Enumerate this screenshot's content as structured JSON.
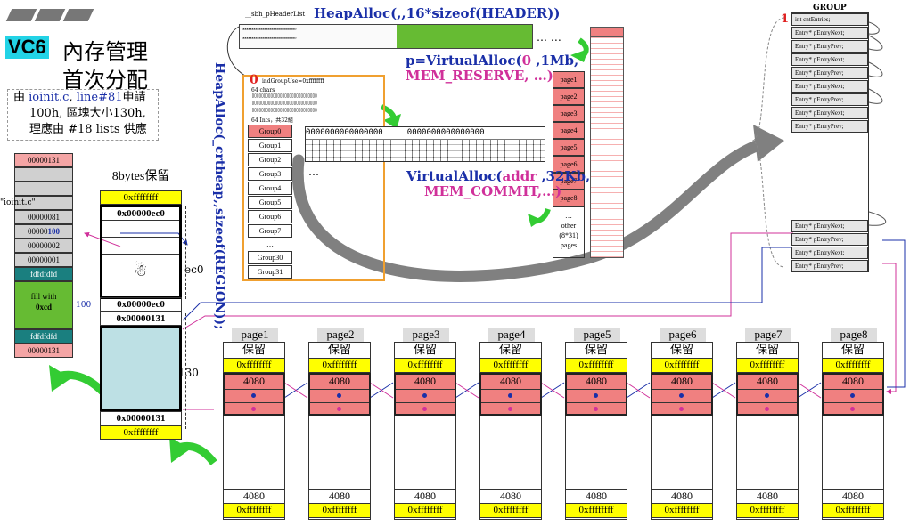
{
  "title": {
    "tag": "VC6",
    "line1": "內存管理",
    "line2": "首次分配"
  },
  "note": {
    "p1": "由 ",
    "file": "ioinit.c",
    "p2": ", ",
    "line": "line#81",
    "p3": "申請",
    "line2": "100h, 區塊大小130h,",
    "line3": "理應由 #18 lists 供應"
  },
  "left_block": {
    "rows": [
      "00000131",
      "",
      "",
      "00000081",
      "00000100",
      "00000002",
      "00000001",
      "fdfdfdfd"
    ],
    "highlight_value": "100",
    "ioinit_label": "\"ioinit.c\"",
    "fill_text": "fill with",
    "fill_code": "0xcd",
    "fill_size": "100",
    "bottom": [
      "fdfdfdfd",
      "00000131"
    ]
  },
  "mid_block": {
    "header": "8bytes保留",
    "top_fff": "0xffffffff",
    "top_ec0": "0x00000ec0",
    "ec0_label": "ec0",
    "mid_ec0": "0x00000ec0",
    "mid_131": "0x00000131",
    "size_label": "130",
    "bottom_131": "0x00000131",
    "bottom_fff": "0xffffffff"
  },
  "heap_header": {
    "list_label": "__sbh_pHeaderList",
    "heapalloc": "HeapAlloc(,,16*sizeof(HEADER))",
    "dots": "… …",
    "vaddr_p": "p=VirtualAlloc(",
    "vaddr_zero": "0",
    "vaddr_rest": " ,1Mb,",
    "vaddr_reserve": "MEM_RESERVE, …)"
  },
  "region": {
    "heapalloc_vertical": "HeapAlloc(_crtheap,,sizeof(REGION));",
    "zero": "0",
    "indGroupUse": "indGroupUse=0xffffffff",
    "chars64": "64 chars",
    "ints64": "64 Ints，共32組",
    "groups": [
      "Group0",
      "Group1",
      "Group2",
      "Group3",
      "Group4",
      "Group5",
      "Group6",
      "Group7",
      "…",
      "Group30",
      "Group31"
    ]
  },
  "bitmap": {
    "row_text": "0000000000000000",
    "dots": "…"
  },
  "pages_col": {
    "pages": [
      "page1",
      "page2",
      "page3",
      "page4",
      "page5",
      "page6",
      "page7",
      "page8"
    ],
    "other": [
      "…",
      "other",
      "(8*31)",
      "pages"
    ]
  },
  "commit": {
    "prefix": "VirtualAlloc(",
    "addr": "addr",
    "rest": " ,32Kb,",
    "commit": "MEM_COMMIT,…)"
  },
  "group": {
    "title": "GROUP",
    "one": "1",
    "first": "int  cntEntries;",
    "entries": [
      "Entry*  pEntryNext;",
      "Entry*  pEntryPrev;",
      "Entry*  pEntryNext;",
      "Entry*  pEntryPrev;",
      "Entry*  pEntryNext;",
      "Entry*  pEntryPrev;",
      "Entry*  pEntryNext;",
      "Entry*  pEntryPrev;"
    ],
    "bottom_entries": [
      "Entry*  pEntryNext;",
      "Entry*  pEntryPrev;",
      "Entry*  pEntryNext;",
      "Entry*  pEntryPrev;"
    ]
  },
  "pages_row": [
    {
      "label": "page1",
      "reserve": "保留",
      "fff": "0xffffffff",
      "v4080": "4080",
      "b4080": "4080",
      "bfff": "0xffffffff"
    },
    {
      "label": "page2",
      "reserve": "保留",
      "fff": "0xffffffff",
      "v4080": "4080",
      "b4080": "4080",
      "bfff": "0xffffffff"
    },
    {
      "label": "page3",
      "reserve": "保留",
      "fff": "0xffffffff",
      "v4080": "4080",
      "b4080": "4080",
      "bfff": "0xffffffff"
    },
    {
      "label": "page4",
      "reserve": "保留",
      "fff": "0xffffffff",
      "v4080": "4080",
      "b4080": "4080",
      "bfff": "0xffffffff"
    },
    {
      "label": "page5",
      "reserve": "保留",
      "fff": "0xffffffff",
      "v4080": "4080",
      "b4080": "4080",
      "bfff": "0xffffffff"
    },
    {
      "label": "page6",
      "reserve": "保留",
      "fff": "0xffffffff",
      "v4080": "4080",
      "b4080": "4080",
      "bfff": "0xffffffff"
    },
    {
      "label": "page7",
      "reserve": "保留",
      "fff": "0xffffffff",
      "v4080": "4080",
      "b4080": "4080",
      "bfff": "0xffffffff"
    },
    {
      "label": "page8",
      "reserve": "保留",
      "fff": "0xffffffff",
      "v4080": "4080",
      "b4080": "4080",
      "bfff": "0xffffffff"
    }
  ],
  "colors": {
    "yellow": "#ffff00",
    "red": "#f08080",
    "green": "#66bb33",
    "teal": "#1a7f7f",
    "blue": "#1a2fa8",
    "magenta": "#d0309a",
    "cyan": "#22d3e6"
  }
}
